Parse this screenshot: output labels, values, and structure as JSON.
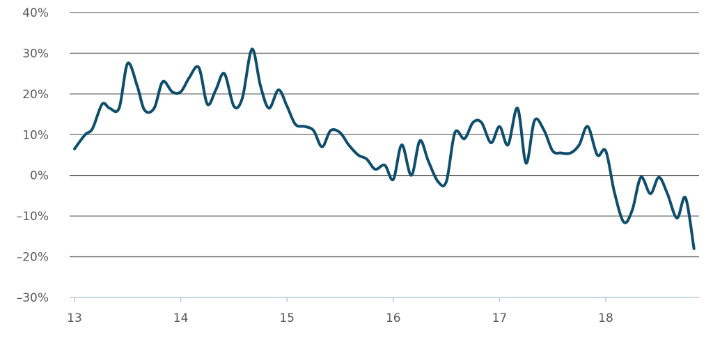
{
  "chart_data": {
    "type": "line",
    "title": "",
    "xlabel": "",
    "ylabel": "",
    "xlim": [
      13,
      18.85
    ],
    "ylim": [
      -30,
      40
    ],
    "grid": "horizontal",
    "legend": "none",
    "line_color": "#0e4d6b",
    "grid_color": "#6e6e6e",
    "zero_line_color": "#444444",
    "axis_color": "#b8c8d4",
    "x_ticks": [
      {
        "value": 13,
        "label": "13"
      },
      {
        "value": 14,
        "label": "14"
      },
      {
        "value": 15,
        "label": "15"
      },
      {
        "value": 16,
        "label": "16"
      },
      {
        "value": 17,
        "label": "17"
      },
      {
        "value": 18,
        "label": "18"
      }
    ],
    "y_ticks": [
      {
        "value": 40,
        "label": "40%"
      },
      {
        "value": 30,
        "label": "30%"
      },
      {
        "value": 20,
        "label": "20%"
      },
      {
        "value": 10,
        "label": "10%"
      },
      {
        "value": 0,
        "label": "0%"
      },
      {
        "value": -10,
        "label": "–10%"
      },
      {
        "value": -20,
        "label": "–20%"
      },
      {
        "value": -30,
        "label": "–30%"
      }
    ],
    "series": [
      {
        "x": [
          13.0,
          13.1,
          13.17,
          13.26,
          13.33,
          13.42,
          13.5,
          13.59,
          13.66,
          13.75,
          13.83,
          13.92,
          14.0,
          14.08,
          14.17,
          14.25,
          14.33,
          14.41,
          14.5,
          14.58,
          14.67,
          14.75,
          14.83,
          14.92,
          15.0,
          15.08,
          15.17,
          15.25,
          15.33,
          15.41,
          15.5,
          15.58,
          15.67,
          15.75,
          15.83,
          15.92,
          16.0,
          16.08,
          16.17,
          16.25,
          16.33,
          16.42,
          16.5,
          16.58,
          16.67,
          16.75,
          16.83,
          16.92,
          17.0,
          17.08,
          17.17,
          17.25,
          17.33,
          17.42,
          17.5,
          17.58,
          17.67,
          17.75,
          17.83,
          17.92,
          18.0,
          18.08,
          18.17,
          18.25,
          18.33,
          18.42,
          18.5,
          18.58,
          18.67,
          18.75,
          18.83
        ],
        "y": [
          6.5,
          10.0,
          11.5,
          17.5,
          16.5,
          16.5,
          27.5,
          22.0,
          16.0,
          16.5,
          23.0,
          20.5,
          20.5,
          24.0,
          26.5,
          17.5,
          21.0,
          25.0,
          17.0,
          19.0,
          31.0,
          22.0,
          16.5,
          21.0,
          17.0,
          12.5,
          12.0,
          11.0,
          7.0,
          11.0,
          10.5,
          7.5,
          5.0,
          4.0,
          1.5,
          2.5,
          -1.0,
          7.5,
          0.0,
          8.5,
          3.5,
          -1.5,
          -1.5,
          10.5,
          9.0,
          13.0,
          13.0,
          8.0,
          12.0,
          7.5,
          16.5,
          3.0,
          13.5,
          11.0,
          6.0,
          5.5,
          5.5,
          7.5,
          12.0,
          5.0,
          6.0,
          -4.0,
          -11.5,
          -8.5,
          -0.5,
          -4.5,
          -0.5,
          -4.5,
          -10.5,
          -5.5,
          -18.0
        ]
      }
    ]
  }
}
